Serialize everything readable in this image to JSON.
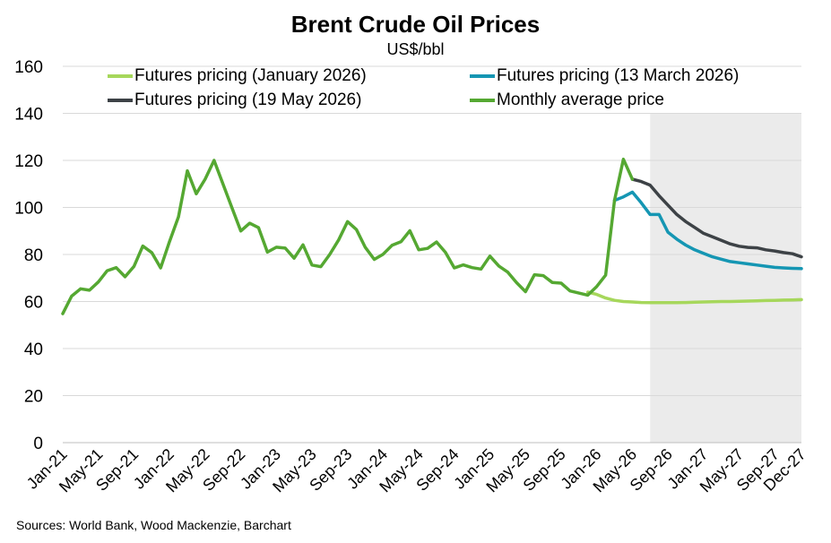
{
  "chart_data": {
    "type": "line",
    "title": "Brent Crude Oil Prices",
    "subtitle": "US$/bbl",
    "source": "Sources: World Bank, Wood Mackenzie, Barchart",
    "ylim": [
      0,
      160
    ],
    "yticks": [
      0,
      20,
      40,
      60,
      80,
      100,
      120,
      140,
      160
    ],
    "xlim": [
      "Jan-21",
      "Dec-27"
    ],
    "xtick_labels": [
      "Jan-21",
      "May-21",
      "Sep-21",
      "Jan-22",
      "May-22",
      "Sep-22",
      "Jan-23",
      "May-23",
      "Sep-23",
      "Jan-24",
      "May-24",
      "Sep-24",
      "Jan-25",
      "May-25",
      "Sep-25",
      "Jan-26",
      "May-26",
      "Sep-26",
      "Jan-27",
      "May-27",
      "Sep-27",
      "Dec-27"
    ],
    "grid": "horizontal",
    "legend_position": "top",
    "shaded_region": {
      "x_start": "Jul-26",
      "x_end": "Dec-27",
      "color": "#ebebeb"
    },
    "series": [
      {
        "name": "Futures pricing (January 2026)",
        "color": "#a6d75b",
        "x": [
          "Dec-25",
          "Jan-26",
          "Feb-26",
          "Mar-26",
          "Apr-26",
          "May-26",
          "Jun-26",
          "Jul-26",
          "Aug-26",
          "Sep-26",
          "Oct-26",
          "Nov-26",
          "Dec-26",
          "Jan-27",
          "Feb-27",
          "Mar-27",
          "Apr-27",
          "May-27",
          "Jun-27",
          "Jul-27",
          "Aug-27",
          "Sep-27",
          "Oct-27",
          "Nov-27",
          "Dec-27"
        ],
        "values": [
          64,
          63,
          61.5,
          60.5,
          60,
          59.8,
          59.6,
          59.5,
          59.5,
          59.5,
          59.5,
          59.6,
          59.7,
          59.8,
          59.9,
          60,
          60,
          60.1,
          60.2,
          60.3,
          60.4,
          60.5,
          60.6,
          60.7,
          60.8
        ]
      },
      {
        "name": "Futures pricing (13 March 2026)",
        "color": "#1596b3",
        "x": [
          "Mar-26",
          "Apr-26",
          "May-26",
          "Jun-26",
          "Jul-26",
          "Aug-26",
          "Sep-26",
          "Oct-26",
          "Nov-26",
          "Dec-26",
          "Jan-27",
          "Feb-27",
          "Mar-27",
          "Apr-27",
          "May-27",
          "Jun-27",
          "Jul-27",
          "Aug-27",
          "Sep-27",
          "Oct-27",
          "Nov-27",
          "Dec-27"
        ],
        "values": [
          103,
          104.5,
          106.5,
          102,
          97,
          97,
          89.5,
          86.5,
          84,
          82,
          80.5,
          79,
          78,
          77,
          76.5,
          76,
          75.5,
          75,
          74.5,
          74.3,
          74.1,
          74
        ]
      },
      {
        "name": "Futures pricing (19 May 2026)",
        "color": "#3d4246",
        "x": [
          "May-26",
          "Jun-26",
          "Jul-26",
          "Aug-26",
          "Sep-26",
          "Oct-26",
          "Nov-26",
          "Dec-26",
          "Jan-27",
          "Feb-27",
          "Mar-27",
          "Apr-27",
          "May-27",
          "Jun-27",
          "Jul-27",
          "Aug-27",
          "Sep-27",
          "Oct-27",
          "Nov-27",
          "Dec-27"
        ],
        "values": [
          112,
          111,
          109.5,
          105,
          101,
          97,
          94,
          91.5,
          89,
          87.5,
          86,
          84.5,
          83.5,
          83,
          82.8,
          82,
          81.5,
          80.8,
          80.3,
          79
        ]
      },
      {
        "name": "Monthly average price",
        "color": "#55a832",
        "x": [
          "Jan-21",
          "Feb-21",
          "Mar-21",
          "Apr-21",
          "May-21",
          "Jun-21",
          "Jul-21",
          "Aug-21",
          "Sep-21",
          "Oct-21",
          "Nov-21",
          "Dec-21",
          "Jan-22",
          "Feb-22",
          "Mar-22",
          "Apr-22",
          "May-22",
          "Jun-22",
          "Jul-22",
          "Aug-22",
          "Sep-22",
          "Oct-22",
          "Nov-22",
          "Dec-22",
          "Jan-23",
          "Feb-23",
          "Mar-23",
          "Apr-23",
          "May-23",
          "Jun-23",
          "Jul-23",
          "Aug-23",
          "Sep-23",
          "Oct-23",
          "Nov-23",
          "Dec-23",
          "Jan-24",
          "Feb-24",
          "Mar-24",
          "Apr-24",
          "May-24",
          "Jun-24",
          "Jul-24",
          "Aug-24",
          "Sep-24",
          "Oct-24",
          "Nov-24",
          "Dec-24",
          "Jan-25",
          "Feb-25",
          "Mar-25",
          "Apr-25",
          "May-25",
          "Jun-25",
          "Jul-25",
          "Aug-25",
          "Sep-25",
          "Oct-25",
          "Nov-25",
          "Dec-25",
          "Jan-26",
          "Feb-26",
          "Mar-26",
          "Apr-26",
          "May-26"
        ],
        "values": [
          54.8,
          62.3,
          65.4,
          64.8,
          68.3,
          73.1,
          74.4,
          70.5,
          74.9,
          83.6,
          80.8,
          74.3,
          85.5,
          96,
          115.6,
          105.8,
          112,
          120,
          110,
          100,
          90,
          93.3,
          91.4,
          81,
          83.1,
          82.7,
          78.4,
          84.1,
          75.5,
          74.8,
          80,
          86.2,
          94,
          90.6,
          83,
          77.9,
          80.1,
          83.9,
          85.4,
          90.1,
          82,
          82.6,
          85.3,
          80.9,
          74.3,
          75.6,
          74.4,
          73.8,
          79.3,
          75.1,
          72.5,
          68,
          64.2,
          71.4,
          71,
          68.1,
          67.8,
          64.5,
          63.6,
          62.7,
          66.4,
          71.2,
          103,
          120.5,
          112
        ]
      }
    ]
  }
}
